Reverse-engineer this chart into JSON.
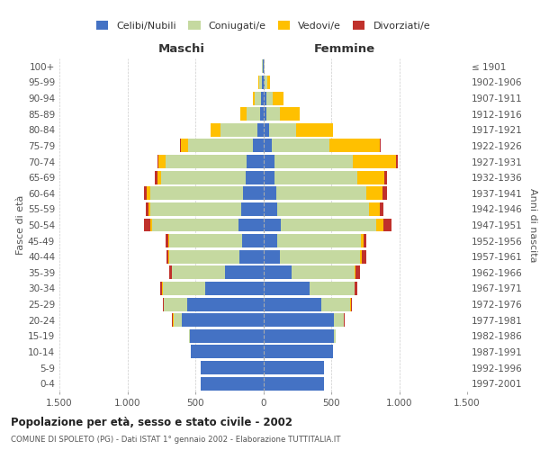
{
  "age_groups": [
    "0-4",
    "5-9",
    "10-14",
    "15-19",
    "20-24",
    "25-29",
    "30-34",
    "35-39",
    "40-44",
    "45-49",
    "50-54",
    "55-59",
    "60-64",
    "65-69",
    "70-74",
    "75-79",
    "80-84",
    "85-89",
    "90-94",
    "95-99",
    "100+"
  ],
  "birth_years": [
    "1997-2001",
    "1992-1996",
    "1987-1991",
    "1982-1986",
    "1977-1981",
    "1972-1976",
    "1967-1971",
    "1962-1966",
    "1957-1961",
    "1952-1956",
    "1947-1951",
    "1942-1946",
    "1937-1941",
    "1932-1936",
    "1927-1931",
    "1922-1926",
    "1917-1921",
    "1912-1916",
    "1907-1911",
    "1902-1906",
    "≤ 1901"
  ],
  "male": {
    "celibi": [
      460,
      460,
      530,
      540,
      600,
      560,
      430,
      280,
      175,
      155,
      180,
      160,
      150,
      130,
      120,
      75,
      45,
      20,
      15,
      10,
      5
    ],
    "coniugati": [
      0,
      0,
      5,
      5,
      60,
      170,
      310,
      390,
      520,
      540,
      640,
      670,
      680,
      620,
      600,
      480,
      270,
      100,
      45,
      20,
      2
    ],
    "vedovi": [
      0,
      0,
      0,
      0,
      5,
      5,
      5,
      5,
      5,
      5,
      10,
      15,
      25,
      30,
      50,
      50,
      70,
      50,
      15,
      5,
      0
    ],
    "divorziati": [
      0,
      0,
      0,
      0,
      5,
      5,
      15,
      20,
      15,
      20,
      50,
      20,
      20,
      20,
      10,
      5,
      0,
      0,
      0,
      0,
      0
    ]
  },
  "female": {
    "nubili": [
      450,
      450,
      510,
      520,
      520,
      430,
      340,
      210,
      120,
      100,
      130,
      100,
      95,
      80,
      80,
      60,
      40,
      20,
      20,
      10,
      5
    ],
    "coniugate": [
      0,
      0,
      5,
      10,
      70,
      210,
      330,
      460,
      590,
      620,
      700,
      680,
      660,
      610,
      580,
      430,
      200,
      100,
      50,
      20,
      2
    ],
    "vedove": [
      0,
      0,
      0,
      0,
      5,
      5,
      5,
      10,
      15,
      20,
      55,
      80,
      120,
      200,
      320,
      370,
      270,
      150,
      80,
      20,
      2
    ],
    "divorziate": [
      0,
      0,
      0,
      0,
      5,
      10,
      20,
      30,
      30,
      20,
      60,
      25,
      35,
      20,
      10,
      5,
      0,
      0,
      0,
      0,
      0
    ]
  },
  "colors": {
    "celibi": "#4472c4",
    "coniugati": "#c5d9a0",
    "vedovi": "#ffc000",
    "divorziati": "#c0312b"
  },
  "title": "Popolazione per età, sesso e stato civile - 2002",
  "subtitle": "COMUNE DI SPOLETO (PG) - Dati ISTAT 1° gennaio 2002 - Elaborazione TUTTITALIA.IT",
  "xlabel_left": "Maschi",
  "xlabel_right": "Femmine",
  "ylabel_left": "Fasce di età",
  "ylabel_right": "Anni di nascita",
  "xlim": 1500,
  "xticks": [
    -1500,
    -1000,
    -500,
    0,
    500,
    1000,
    1500
  ],
  "xticklabels": [
    "1.500",
    "1.000",
    "500",
    "0",
    "500",
    "1.000",
    "1.500"
  ],
  "legend_labels": [
    "Celibi/Nubili",
    "Coniugati/e",
    "Vedovi/e",
    "Divorziati/e"
  ],
  "bg_color": "#ffffff",
  "grid_color": "#cccccc"
}
